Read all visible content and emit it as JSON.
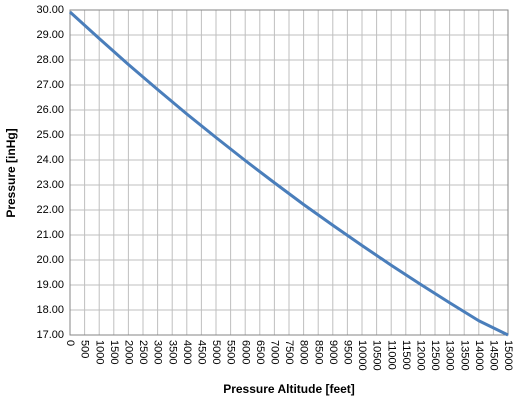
{
  "chart_data": {
    "type": "line",
    "x_label": "Pressure  Altitude  [feet]",
    "y_label": "Pressure  [inHg]",
    "x": [
      0,
      1000,
      2000,
      3000,
      4000,
      5000,
      6000,
      7000,
      8000,
      9000,
      10000,
      11000,
      12000,
      13000,
      14000,
      15000
    ],
    "series": [
      {
        "color": "#4a7ebb",
        "values": [
          29.92,
          28.86,
          27.82,
          26.82,
          25.84,
          24.9,
          23.98,
          23.09,
          22.22,
          21.39,
          20.58,
          19.79,
          19.03,
          18.29,
          17.57,
          17.0
        ]
      }
    ],
    "xlim": [
      0,
      15000
    ],
    "xticks": [
      0,
      500,
      1000,
      1500,
      2000,
      2500,
      3000,
      3500,
      4000,
      4500,
      5000,
      5500,
      6000,
      6500,
      7000,
      7500,
      8000,
      8500,
      9000,
      9500,
      10000,
      10500,
      11000,
      11500,
      12000,
      12500,
      13000,
      13500,
      14000,
      14500,
      15000
    ],
    "ylim": [
      17,
      30
    ],
    "yticks": [
      {
        "value": 17,
        "label": "17.00"
      },
      {
        "value": 18,
        "label": "18.00"
      },
      {
        "value": 19,
        "label": "19.00"
      },
      {
        "value": 20,
        "label": "20.00"
      },
      {
        "value": 21,
        "label": "21.00"
      },
      {
        "value": 22,
        "label": "22.00"
      },
      {
        "value": 23,
        "label": "23.00"
      },
      {
        "value": 24,
        "label": "24.00"
      },
      {
        "value": 25,
        "label": "25.00"
      },
      {
        "value": 26,
        "label": "26.00"
      },
      {
        "value": 27,
        "label": "27.00"
      },
      {
        "value": 28,
        "label": "28.00"
      },
      {
        "value": 29,
        "label": "29.00"
      },
      {
        "value": 30,
        "label": "30.00"
      }
    ],
    "grid": true
  }
}
